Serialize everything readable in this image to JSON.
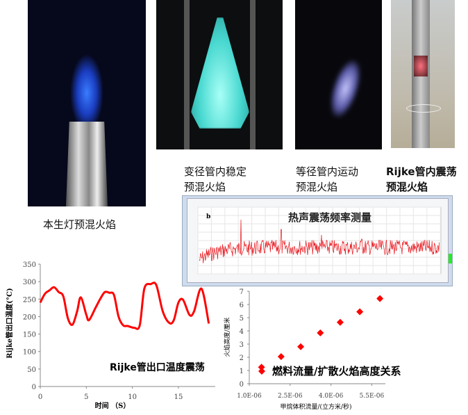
{
  "captions": {
    "bunsen": "本生灯预混火焰",
    "variable_tube": "变径管内稳定\n预混火焰",
    "equal_tube": "等径管内运动\n预混火焰",
    "rijke": "Rijke管内震荡\n预混火焰"
  },
  "spectrum": {
    "title": "热声震荡频率测量",
    "panel_label": "b",
    "line_color": "#e8141b"
  },
  "chart_data": [
    {
      "type": "line",
      "title": "Rijke管出口温度震荡",
      "xlabel": "时间 （S）",
      "ylabel": "Rijke管出口温度(°C)",
      "xlim": [
        0,
        19
      ],
      "ylim": [
        0,
        350
      ],
      "xticks": [
        "0",
        "5",
        "10",
        "15"
      ],
      "yticks": [
        "0",
        "50",
        "100",
        "150",
        "200",
        "250",
        "300",
        "350"
      ],
      "color": "#ff0000",
      "grid": false,
      "x": [
        0,
        0.5,
        1,
        1.5,
        2,
        2.5,
        3,
        3.5,
        4,
        4.4,
        5,
        5.3,
        6,
        6.5,
        7,
        7.5,
        8,
        8.5,
        9,
        9.5,
        10.2,
        10.8,
        11.3,
        12,
        12.6,
        13.3,
        14,
        14.5,
        15,
        15.5,
        16.2,
        16.7,
        17.5,
        18.3
      ],
      "y": [
        240,
        265,
        275,
        284,
        270,
        258,
        195,
        177,
        215,
        255,
        205,
        190,
        225,
        250,
        270,
        268,
        262,
        200,
        175,
        173,
        168,
        175,
        280,
        293,
        290,
        215,
        182,
        190,
        240,
        248,
        205,
        215,
        280,
        180
      ]
    },
    {
      "type": "scatter",
      "legend": "燃料流量/扩散火焰高度关系",
      "xlabel": "甲烷体积流量/(立方米/秒)",
      "ylabel": "火焰高度/厘米",
      "xlim": [
        1e-06,
        6e-06
      ],
      "ylim": [
        0,
        7
      ],
      "xticks": [
        "1.0E-06",
        "2.5E-06",
        "4.0E-06",
        "5.5E-06"
      ],
      "yticks": [
        "0",
        "1",
        "2",
        "3",
        "4",
        "5",
        "6",
        "7"
      ],
      "color": "#ff0000",
      "marker": "diamond",
      "grid": false,
      "x": [
        1.45e-06,
        2.17e-06,
        2.89e-06,
        3.61e-06,
        4.34e-06,
        5.06e-06,
        5.8e-06
      ],
      "y": [
        1.25,
        2.05,
        2.8,
        3.85,
        4.65,
        5.45,
        6.45
      ]
    }
  ]
}
